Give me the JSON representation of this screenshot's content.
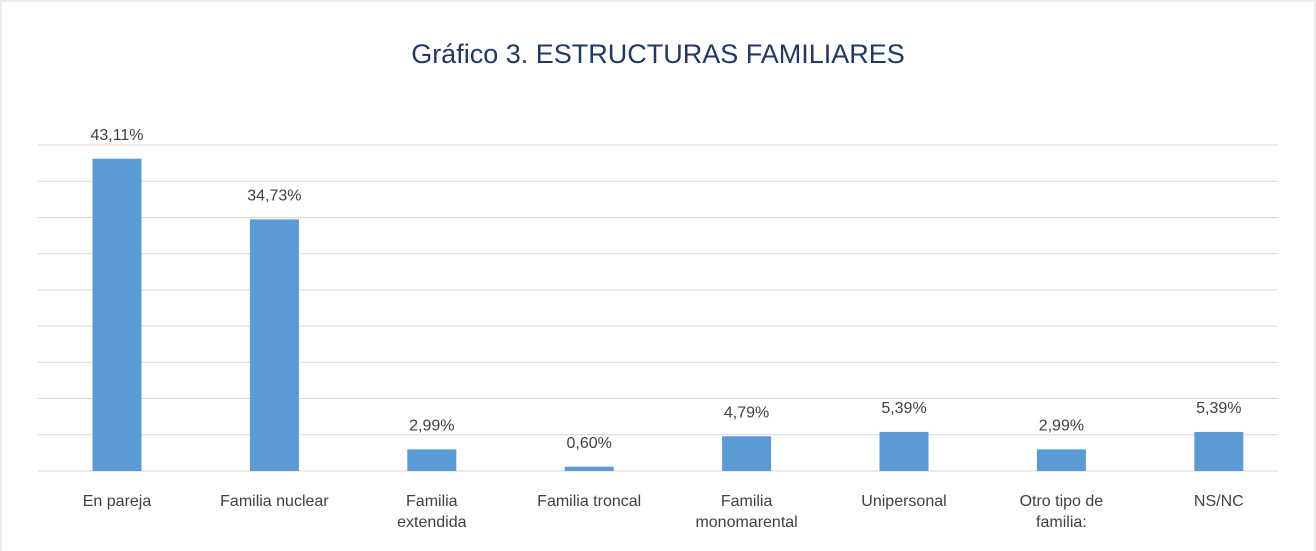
{
  "chart_data": {
    "type": "bar",
    "title": "Gráfico 3. ESTRUCTURAS FAMILIARES",
    "categories": [
      "En pareja",
      "Familia nuclear",
      "Familia extendida",
      "Familia troncal",
      "Familia monomarental",
      "Unipersonal",
      "Otro tipo de familia:",
      "NS/NC"
    ],
    "values": [
      43.11,
      34.73,
      2.99,
      0.6,
      4.79,
      5.39,
      2.99,
      5.39
    ],
    "value_labels": [
      "43,11%",
      "34,73%",
      "2,99%",
      "0,60%",
      "4,79%",
      "5,39%",
      "2,99%",
      "5,39%"
    ],
    "color": "#5b9bd5",
    "ylim": [
      0,
      45
    ],
    "yticks": [
      0,
      5,
      10,
      15,
      20,
      25,
      30,
      35,
      40,
      45
    ],
    "grid": true
  }
}
